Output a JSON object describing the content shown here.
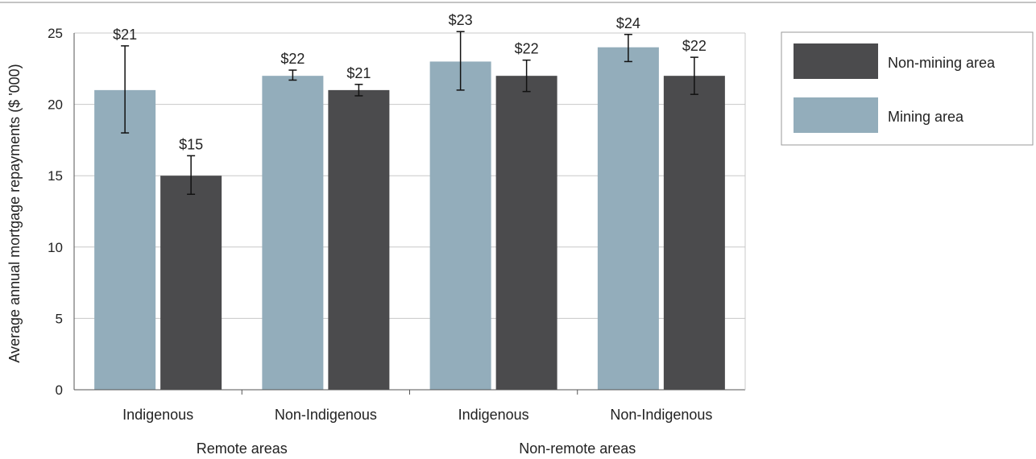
{
  "chart_data": {
    "type": "bar",
    "ylabel": "Average annual mortgage repayments ($ '000)",
    "ylim": [
      0,
      25
    ],
    "yticks": [
      0,
      5,
      10,
      15,
      20,
      25
    ],
    "groups": [
      {
        "label": "Remote areas",
        "categories": [
          "Indigenous",
          "Non-Indigenous"
        ]
      },
      {
        "label": "Non-remote areas",
        "categories": [
          "Indigenous",
          "Non-Indigenous"
        ]
      }
    ],
    "categories": [
      "Indigenous",
      "Non-Indigenous",
      "Indigenous",
      "Non-Indigenous"
    ],
    "series": [
      {
        "name": "Mining area",
        "color": "#93adbb",
        "values": [
          21,
          22,
          23,
          24
        ],
        "error_low": [
          18,
          21.7,
          21,
          23
        ],
        "error_high": [
          24.1,
          22.4,
          25.1,
          24.9
        ],
        "labels": [
          "$21",
          "$22",
          "$23",
          "$24"
        ]
      },
      {
        "name": "Non-mining area",
        "color": "#4b4b4d",
        "values": [
          15,
          21,
          22,
          22
        ],
        "error_low": [
          13.7,
          20.6,
          20.9,
          20.7
        ],
        "error_high": [
          16.4,
          21.4,
          23.1,
          23.3
        ],
        "labels": [
          "$15",
          "$21",
          "$22",
          "$22"
        ]
      }
    ],
    "legend": {
      "position": "right",
      "order": [
        "Non-mining area",
        "Mining area"
      ]
    },
    "grid": true
  }
}
